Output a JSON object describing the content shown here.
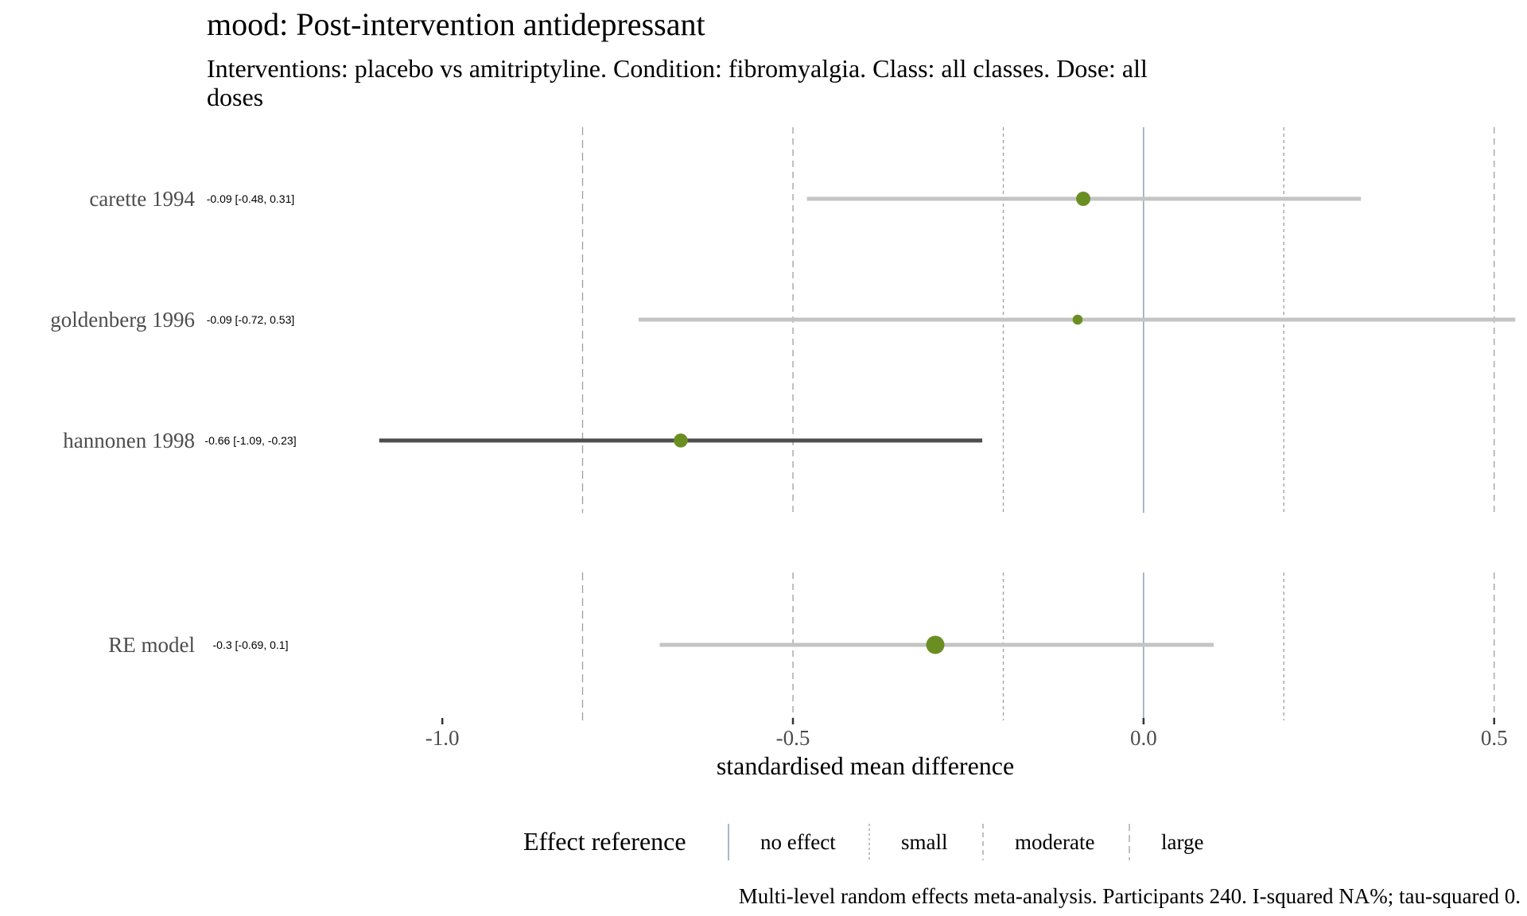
{
  "title": "mood: Post-intervention antidepressant",
  "subtitle_lines": [
    "Interventions: placebo vs amitriptyline. Condition: fibromyalgia. Class: all classes. Dose: all",
    "doses"
  ],
  "caption": "Multi-level random effects meta-analysis. Participants 240. I-squared NA%; tau-squared 0.",
  "legend": {
    "title": "Effect reference",
    "items": [
      {
        "label": "no effect",
        "style": "solid",
        "color": "#7f8fa9"
      },
      {
        "label": "small",
        "style": "dotted",
        "color": "#9e9e9e"
      },
      {
        "label": "moderate",
        "style": "dashed-short",
        "color": "#9e9e9e"
      },
      {
        "label": "large",
        "style": "dashed",
        "color": "#9e9e9e"
      }
    ]
  },
  "colors": {
    "point": "#6b8e23",
    "ci_default": "#c4c4c4",
    "ci_highlight": "#4d4d4d",
    "no_effect": "#7f8fa9",
    "reference": "#9e9e9e"
  },
  "chart_data": {
    "type": "forest",
    "xlabel": "standardised mean difference",
    "xlim": [
      -1.1,
      0.54
    ],
    "xticks": [
      -1.0,
      -0.5,
      0.0,
      0.5
    ],
    "xtick_labels": [
      "-1.0",
      "-0.5",
      "0.0",
      "0.5"
    ],
    "reference_lines": {
      "no_effect": [
        0
      ],
      "small": [
        -0.2,
        0.2
      ],
      "moderate": [
        -0.5,
        0.5
      ],
      "large": [
        -0.8
      ]
    },
    "studies": [
      {
        "name": "carette 1994",
        "label": "-0.09 [-0.48, 0.31]",
        "estimate": -0.086,
        "lower": -0.48,
        "upper": 0.31,
        "weight": 1.0,
        "highlight": false
      },
      {
        "name": "goldenberg 1996",
        "label": "-0.09 [-0.72, 0.53]",
        "estimate": -0.094,
        "lower": -0.72,
        "upper": 0.53,
        "weight": 0.45,
        "highlight": false
      },
      {
        "name": "hannonen 1998",
        "label": "-0.66 [-1.09, -0.23]",
        "estimate": -0.66,
        "lower": -1.09,
        "upper": -0.23,
        "weight": 0.95,
        "highlight": true
      }
    ],
    "summary": {
      "name": "RE model",
      "label": "-0.3 [-0.69, 0.1]",
      "estimate": -0.297,
      "lower": -0.69,
      "upper": 0.1,
      "weight": 1.5,
      "highlight": false
    }
  }
}
